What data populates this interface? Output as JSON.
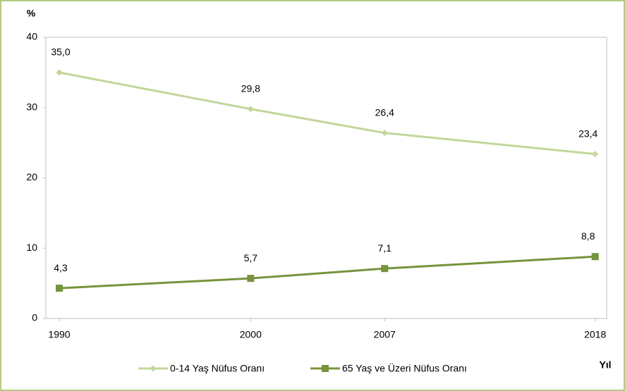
{
  "chart_data": {
    "type": "line",
    "y_label": "%",
    "x_label": "Yıl",
    "x": [
      1990,
      2000,
      2007,
      2018
    ],
    "series": [
      {
        "name": "0-14 Yaş Nüfus Oranı",
        "color": "#c3d69b",
        "marker": "diamond",
        "values": [
          35.0,
          29.8,
          26.4,
          23.4
        ],
        "value_labels": [
          "35,0",
          "29,8",
          "26,4",
          "23,4"
        ]
      },
      {
        "name": "65 Yaş ve Üzeri Nüfus Oranı",
        "color": "#77933c",
        "marker": "square",
        "values": [
          4.3,
          5.7,
          7.1,
          8.8
        ],
        "value_labels": [
          "4,3",
          "5,7",
          "7,1",
          "8,8"
        ]
      }
    ],
    "xlim": [
      1989.3,
      2018.6
    ],
    "ylim": [
      0,
      40
    ],
    "xticks": [
      1990,
      2000,
      2007,
      2018
    ],
    "yticks": [
      0,
      10,
      20,
      30,
      40
    ],
    "grid": false,
    "legend": "bottom"
  }
}
